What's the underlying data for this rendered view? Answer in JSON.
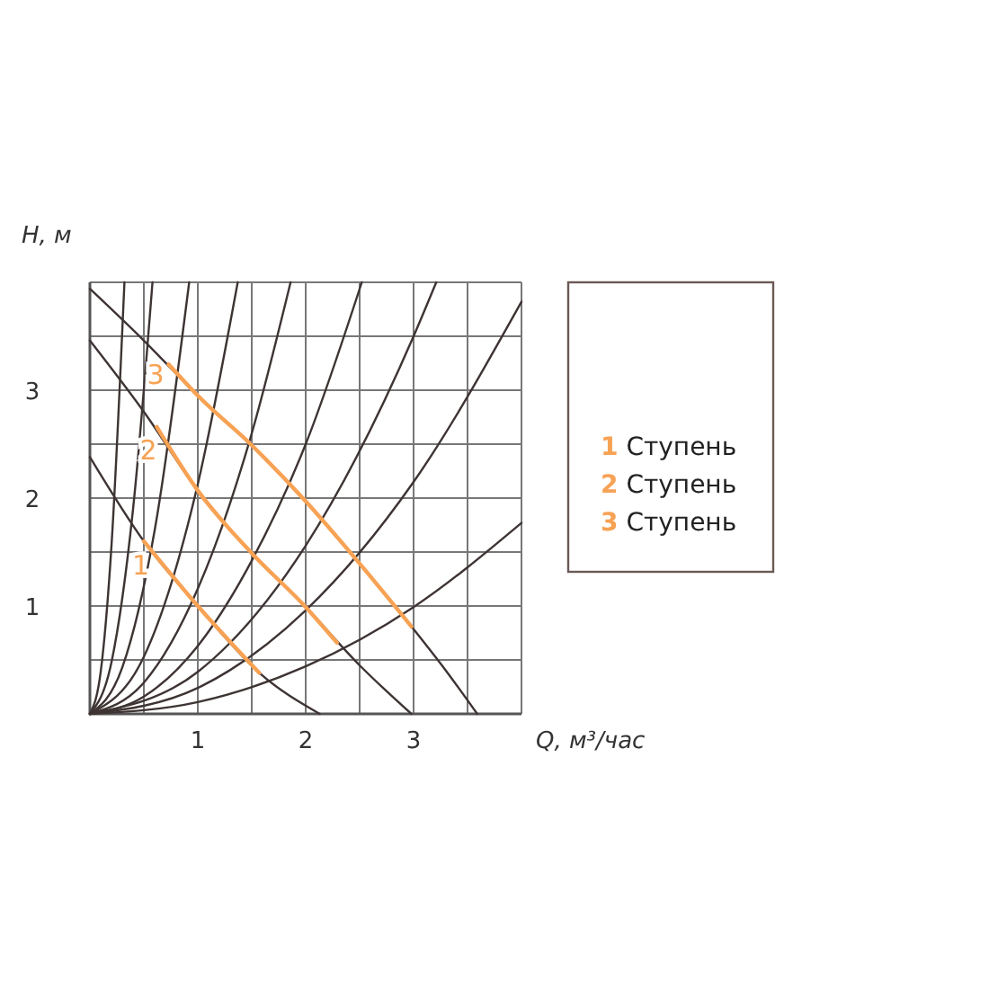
{
  "chart_data": {
    "type": "line",
    "xlabel": "Q, м³/час",
    "ylabel": "H, м",
    "xlim": [
      0,
      4
    ],
    "ylim": [
      0,
      4
    ],
    "xticks": [
      {
        "value": 0.5,
        "label": null
      },
      1,
      {
        "value": 1.5,
        "label": null
      },
      2,
      {
        "value": 2.5,
        "label": null
      },
      3,
      {
        "value": 3.5,
        "label": null
      },
      {
        "value": 4,
        "label": null
      }
    ],
    "yticks": [
      {
        "value": 0.5,
        "label": null
      },
      1,
      {
        "value": 1.5,
        "label": null
      },
      2,
      {
        "value": 2.5,
        "label": null
      },
      3,
      {
        "value": 3.5,
        "label": null
      },
      {
        "value": 4,
        "label": null
      }
    ],
    "grid": true,
    "marker": "none",
    "line_style": "solid",
    "annotations": [
      "1 Ступень",
      "2 Ступень",
      "3 Ступень"
    ],
    "series": [
      {
        "color": "#3d3433",
        "x": [
          0,
          0.1,
          0.2,
          0.32
        ],
        "values": [
          0,
          0.39,
          1.56,
          4
        ]
      },
      {
        "color": "#3d3433",
        "x": [
          0,
          0.2,
          0.4,
          0.58
        ],
        "values": [
          0,
          0.48,
          1.9,
          4
        ]
      },
      {
        "color": "#3d3433",
        "x": [
          0,
          0.3,
          0.6,
          0.92
        ],
        "values": [
          0,
          0.43,
          1.7,
          4
        ]
      },
      {
        "color": "#3d3433",
        "x": [
          0,
          0.5,
          1,
          1.37
        ],
        "values": [
          0,
          0.53,
          2.13,
          4
        ]
      },
      {
        "color": "#3d3433",
        "x": [
          0,
          0.5,
          1,
          1.5,
          1.86
        ],
        "values": [
          0,
          0.29,
          1.16,
          2.6,
          4
        ]
      },
      {
        "color": "#3d3433",
        "x": [
          0,
          0.5,
          1,
          1.5,
          2,
          2.52
        ],
        "values": [
          0,
          0.16,
          0.63,
          1.42,
          2.5,
          4
        ]
      },
      {
        "color": "#3d3433",
        "x": [
          0,
          1,
          2,
          3,
          3.21
        ],
        "values": [
          0,
          0.39,
          1.56,
          3.5,
          4
        ]
      },
      {
        "color": "#3d3433",
        "x": [
          0,
          1,
          2,
          3,
          4
        ],
        "values": [
          0,
          0.24,
          0.96,
          2.15,
          3.82
        ]
      },
      {
        "color": "#3d3433",
        "x": [
          0,
          1,
          2,
          3,
          4
        ],
        "values": [
          0,
          0.11,
          0.44,
          0.99,
          1.77
        ]
      },
      {
        "color": "#3d3433",
        "x": [
          0,
          0.5,
          1,
          1.57,
          2.13
        ],
        "values": [
          2.38,
          1.6,
          1.0,
          0.38,
          0
        ]
      },
      {
        "color": "#3d3433",
        "x": [
          0,
          0.5,
          1,
          1.5,
          2,
          2.5,
          2.98
        ],
        "values": [
          3.46,
          2.8,
          2.07,
          1.49,
          0.99,
          0.45,
          0
        ]
      },
      {
        "color": "#3d3433",
        "x": [
          0,
          0.5,
          1,
          1.5,
          2,
          2.46,
          2.98,
          3.3,
          3.59
        ],
        "values": [
          3.94,
          3.46,
          2.95,
          2.49,
          1.97,
          1.44,
          0.81,
          0.4,
          0
        ]
      },
      {
        "name": "1",
        "color": "#f7a254",
        "x": [
          0.5,
          1,
          1.57
        ],
        "values": [
          1.6,
          1.0,
          0.38
        ]
      },
      {
        "name": "2",
        "color": "#f7a254",
        "x": [
          0.62,
          1,
          1.5,
          2,
          2.29
        ],
        "values": [
          2.66,
          2.07,
          1.49,
          0.99,
          0.66
        ]
      },
      {
        "name": "3",
        "color": "#f7a254",
        "x": [
          0.73,
          1,
          1.5,
          2,
          2.46,
          2.98
        ],
        "values": [
          3.24,
          2.95,
          2.49,
          1.97,
          1.44,
          0.81
        ]
      }
    ]
  }
}
